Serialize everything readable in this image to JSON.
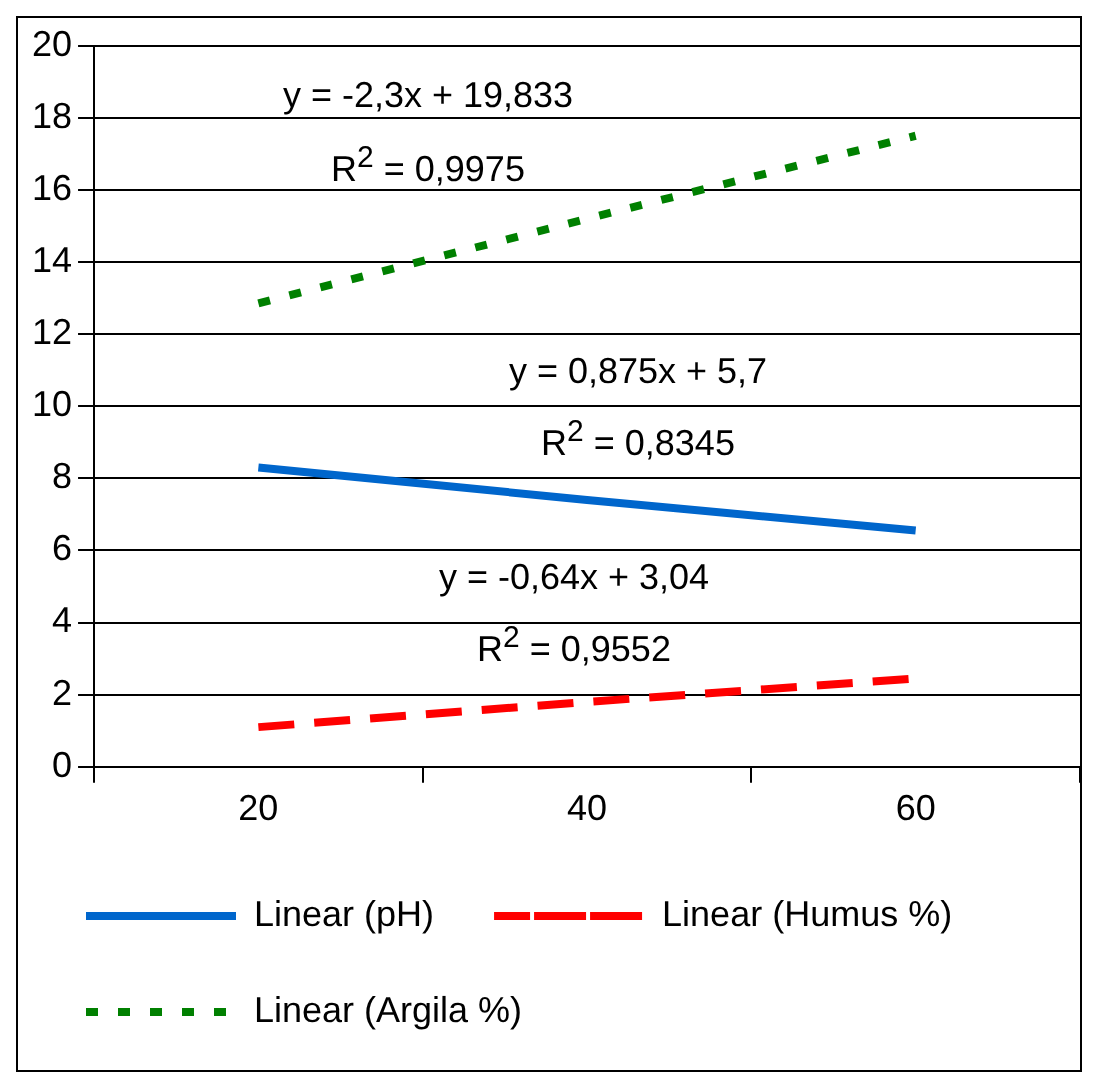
{
  "chart_data": {
    "type": "line",
    "categories": [
      "20",
      "40",
      "60"
    ],
    "series": [
      {
        "name": "Linear (pH)",
        "color": "#0066cc",
        "values": [
          8.3,
          7.4,
          6.55
        ],
        "line_style": "solid"
      },
      {
        "name": "Linear (Humus %)",
        "color": "#ff0000",
        "values": [
          1.1,
          1.8,
          2.45
        ],
        "line_style": "dashed"
      },
      {
        "name": "Linear (Argila %)",
        "color": "#008000",
        "values": [
          12.85,
          15.2,
          17.5
        ],
        "line_style": "dotted"
      }
    ],
    "ylim": [
      0,
      20
    ],
    "yticks": [
      0,
      2,
      4,
      6,
      8,
      10,
      12,
      14,
      16,
      18,
      20
    ],
    "grid": "y",
    "legend": "bottom",
    "marker": "none",
    "annotations": [
      "y = -2,3x + 19,833",
      "R$^{2}$ = 0,9975",
      "y = 0,875x + 5,7",
      "R$^{2}$ = 0,8345",
      "y = -0,64x + 3,04",
      "R$^{2}$ = 0,9552"
    ]
  }
}
